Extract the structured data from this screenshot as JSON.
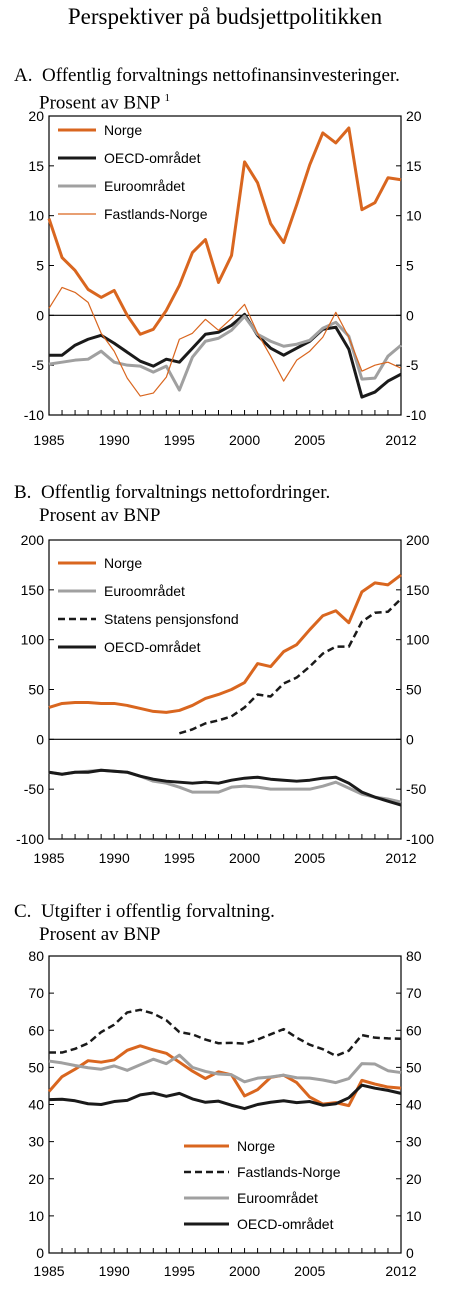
{
  "figure_title": "Perspektiver på budsjettpolitikken",
  "colors": {
    "norge": "#d9661f",
    "oecd": "#1a1a1a",
    "euro": "#a0a0a0",
    "fastland": "#d9661f",
    "pensjon": "#1a1a1a"
  },
  "panels": [
    {
      "letter": "A.",
      "title": "Offentlig forvaltnings nettofinansinvesteringer.",
      "subtitle": "Prosent av BNP",
      "footnote_mark": "1"
    },
    {
      "letter": "B.",
      "title": "Offentlig forvaltnings nettofordringer.",
      "subtitle": "Prosent av BNP",
      "footnote_mark": ""
    },
    {
      "letter": "C.",
      "title": "Utgifter i offentlig forvaltning.",
      "subtitle": "Prosent av BNP",
      "footnote_mark": ""
    }
  ],
  "chart_data": [
    {
      "type": "line",
      "title": "Offentlig forvaltnings nettofinansinvesteringer. Prosent av BNP",
      "xlim": [
        1985,
        2012
      ],
      "ylim": [
        -10,
        20
      ],
      "yticks": [
        -10,
        -5,
        0,
        5,
        10,
        15,
        20
      ],
      "xticks": [
        1985,
        1990,
        1995,
        2000,
        2005,
        2012
      ],
      "legend_position": "top-left",
      "grid": false,
      "zero_line": true,
      "x": [
        1985,
        1986,
        1987,
        1988,
        1989,
        1990,
        1991,
        1992,
        1993,
        1994,
        1995,
        1996,
        1997,
        1998,
        1999,
        2000,
        2001,
        2002,
        2003,
        2004,
        2005,
        2006,
        2007,
        2008,
        2009,
        2010,
        2011,
        2012
      ],
      "series": [
        {
          "name": "Norge",
          "style": "norge",
          "values": [
            9.7,
            5.8,
            4.5,
            2.6,
            1.8,
            2.5,
            0.0,
            -1.9,
            -1.4,
            0.5,
            3.0,
            6.3,
            7.6,
            3.3,
            6.0,
            15.4,
            13.3,
            9.2,
            7.3,
            11.1,
            15.1,
            18.3,
            17.3,
            18.8,
            10.6,
            11.3,
            13.8,
            13.6
          ]
        },
        {
          "name": "OECD-området",
          "style": "oecd",
          "values": [
            -4.0,
            -4.0,
            -3.0,
            -2.4,
            -2.0,
            -2.8,
            -3.7,
            -4.6,
            -5.1,
            -4.4,
            -4.7,
            -3.3,
            -1.9,
            -1.7,
            -1.0,
            0.1,
            -2.0,
            -3.3,
            -4.0,
            -3.3,
            -2.6,
            -1.4,
            -1.2,
            -3.4,
            -8.2,
            -7.7,
            -6.6,
            -5.9
          ]
        },
        {
          "name": "Euroområdet",
          "style": "euro",
          "values": [
            -4.9,
            -4.7,
            -4.5,
            -4.4,
            -3.6,
            -4.7,
            -5.0,
            -5.1,
            -5.7,
            -5.1,
            -7.5,
            -4.2,
            -2.6,
            -2.3,
            -1.5,
            -0.1,
            -1.9,
            -2.6,
            -3.1,
            -2.9,
            -2.5,
            -1.3,
            -0.7,
            -2.1,
            -6.4,
            -6.3,
            -4.1,
            -3.0
          ]
        },
        {
          "name": "Fastlands-Norge",
          "style": "fastland",
          "values": [
            0.7,
            2.8,
            2.3,
            1.3,
            -1.8,
            -3.6,
            -6.3,
            -8.1,
            -7.8,
            -6.2,
            -2.4,
            -1.8,
            -0.4,
            -1.5,
            -0.3,
            1.1,
            -1.8,
            -4.1,
            -6.6,
            -4.5,
            -3.6,
            -2.2,
            0.3,
            -2.2,
            -5.6,
            -5.0,
            -4.7,
            -5.3
          ]
        }
      ]
    },
    {
      "type": "line",
      "title": "Offentlig forvaltnings nettofordringer. Prosent av BNP",
      "xlim": [
        1985,
        2012
      ],
      "ylim": [
        -100,
        200
      ],
      "yticks": [
        -100,
        -50,
        0,
        50,
        100,
        150,
        200
      ],
      "xticks": [
        1985,
        1990,
        1995,
        2000,
        2005,
        2012
      ],
      "legend_position": "top-left",
      "grid": false,
      "zero_line": true,
      "x": [
        1985,
        1986,
        1987,
        1988,
        1989,
        1990,
        1991,
        1992,
        1993,
        1994,
        1995,
        1996,
        1997,
        1998,
        1999,
        2000,
        2001,
        2002,
        2003,
        2004,
        2005,
        2006,
        2007,
        2008,
        2009,
        2010,
        2011,
        2012
      ],
      "series": [
        {
          "name": "Norge",
          "style": "norge",
          "values": [
            32,
            36,
            37,
            37,
            36,
            36,
            34,
            31,
            28,
            27,
            29,
            34,
            41,
            45,
            50,
            57,
            76,
            73,
            88,
            95,
            110,
            124,
            129,
            117,
            148,
            157,
            155,
            165
          ]
        },
        {
          "name": "Euroområdet",
          "style": "euro",
          "values": [
            -33,
            -35,
            -33,
            -32,
            -31,
            -32,
            -33,
            -37,
            -42,
            -44,
            -48,
            -53,
            -53,
            -53,
            -48,
            -47,
            -48,
            -50,
            -50,
            -50,
            -50,
            -47,
            -43,
            -49,
            -55,
            -58,
            -60,
            -63
          ]
        },
        {
          "name": "Statens pensjonsfond",
          "style": "pensjon",
          "values": [
            null,
            null,
            null,
            null,
            null,
            null,
            null,
            null,
            null,
            null,
            6,
            10,
            16,
            19,
            23,
            32,
            45,
            43,
            56,
            62,
            73,
            86,
            93,
            93,
            118,
            127,
            128,
            141
          ]
        },
        {
          "name": "OECD-området",
          "style": "oecd",
          "values": [
            -33,
            -35,
            -33,
            -33,
            -31,
            -32,
            -33,
            -37,
            -40,
            -42,
            -43,
            -44,
            -43,
            -44,
            -41,
            -39,
            -38,
            -40,
            -41,
            -42,
            -41,
            -39,
            -38,
            -44,
            -53,
            -58,
            -62,
            -66
          ]
        }
      ]
    },
    {
      "type": "line",
      "title": "Utgifter i offentlig forvaltning. Prosent av BNP",
      "xlim": [
        1985,
        2012
      ],
      "ylim": [
        0,
        80
      ],
      "yticks": [
        0,
        10,
        20,
        30,
        40,
        50,
        60,
        70,
        80
      ],
      "xticks": [
        1985,
        1990,
        1995,
        2000,
        2005,
        2012
      ],
      "legend_position": "bottom-right",
      "grid": false,
      "zero_line": false,
      "x": [
        1985,
        1986,
        1987,
        1988,
        1989,
        1990,
        1991,
        1992,
        1993,
        1994,
        1995,
        1996,
        1997,
        1998,
        1999,
        2000,
        2001,
        2002,
        2003,
        2004,
        2005,
        2006,
        2007,
        2008,
        2009,
        2010,
        2011,
        2012
      ],
      "series": [
        {
          "name": "Norge",
          "style": "norge",
          "values": [
            43.5,
            47.5,
            49.5,
            51.8,
            51.4,
            52.0,
            54.6,
            55.8,
            54.7,
            53.8,
            51.4,
            49.0,
            47.0,
            48.8,
            48.0,
            42.3,
            44.0,
            47.3,
            47.9,
            45.9,
            42.0,
            40.1,
            40.5,
            39.7,
            46.5,
            45.5,
            44.7,
            44.4
          ]
        },
        {
          "name": "Fastlands-Norge",
          "style": "fastland_dashed",
          "values": [
            54.0,
            54.0,
            55.0,
            56.5,
            59.5,
            61.5,
            64.8,
            65.5,
            64.5,
            62.7,
            59.5,
            58.9,
            57.5,
            56.5,
            56.6,
            56.4,
            57.5,
            58.9,
            60.3,
            58.0,
            56.1,
            54.9,
            53.1,
            54.5,
            58.7,
            58.0,
            57.8,
            57.7
          ]
        },
        {
          "name": "Euroområdet",
          "style": "euro",
          "values": [
            51.7,
            51.2,
            50.5,
            49.9,
            49.5,
            50.4,
            49.2,
            50.7,
            52.2,
            51.0,
            53.3,
            50.0,
            48.9,
            48.2,
            48.0,
            46.1,
            47.1,
            47.4,
            47.9,
            47.2,
            47.1,
            46.6,
            45.9,
            47.0,
            51.0,
            50.9,
            49.1,
            48.6
          ]
        },
        {
          "name": "OECD-området",
          "style": "oecd",
          "values": [
            41.3,
            41.4,
            41.0,
            40.2,
            40.0,
            40.8,
            41.1,
            42.6,
            43.1,
            42.2,
            43.0,
            41.5,
            40.6,
            40.9,
            39.8,
            38.9,
            40.0,
            40.6,
            41.0,
            40.5,
            40.8,
            39.8,
            40.2,
            41.8,
            45.2,
            44.4,
            43.8,
            43.0
          ]
        }
      ]
    }
  ]
}
